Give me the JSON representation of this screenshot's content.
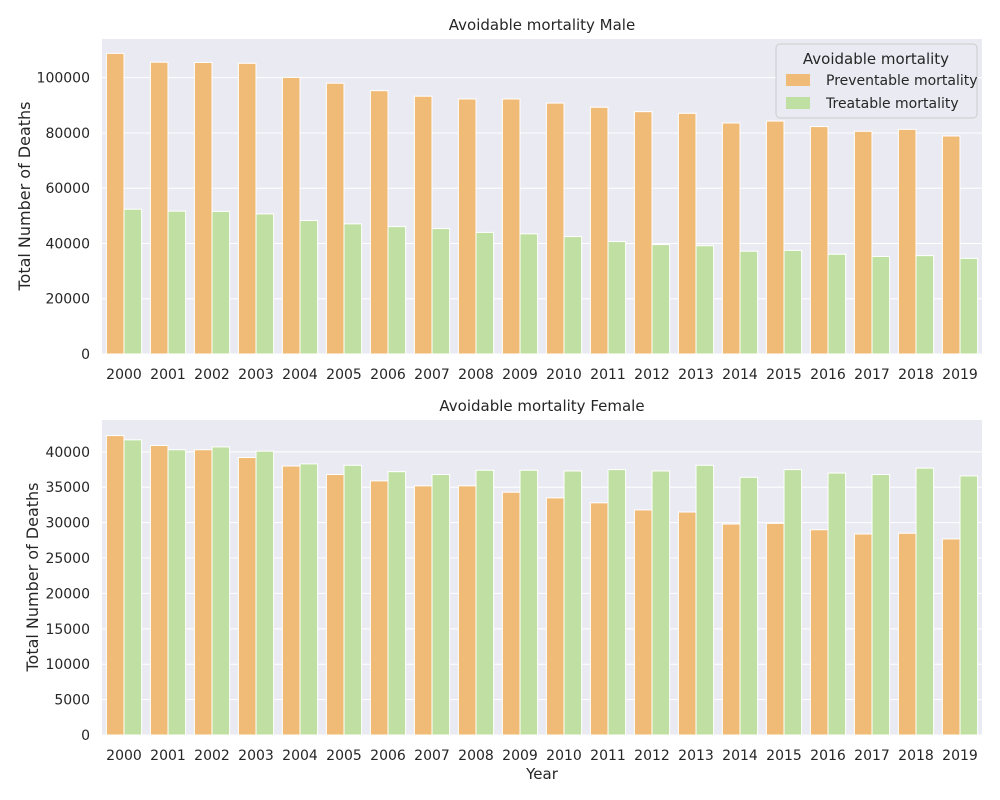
{
  "colors": {
    "plot_background": "#eaeaf2",
    "grid": "#ffffff",
    "preventable": "#f0bb77",
    "treatable": "#c0e0a3",
    "text": "#262626"
  },
  "legend": {
    "title": "Avoidable mortality",
    "position": "top-right",
    "entries": [
      "Preventable mortality",
      "Treatable mortality"
    ]
  },
  "chart_data": [
    {
      "type": "bar",
      "title": "Avoidable mortality Male",
      "xlabel": "",
      "ylabel": "Total Number of Deaths",
      "categories": [
        "2000",
        "2001",
        "2002",
        "2003",
        "2004",
        "2005",
        "2006",
        "2007",
        "2008",
        "2009",
        "2010",
        "2011",
        "2012",
        "2013",
        "2014",
        "2015",
        "2016",
        "2017",
        "2018",
        "2019"
      ],
      "ylim": [
        0,
        114000
      ],
      "yticks": [
        0,
        20000,
        40000,
        60000,
        80000,
        100000
      ],
      "grid": true,
      "legend": true,
      "series": [
        {
          "name": "Preventable mortality",
          "values": [
            108800,
            105600,
            105500,
            105200,
            100100,
            98000,
            95300,
            93300,
            92300,
            92300,
            90800,
            89300,
            87700,
            87100,
            83600,
            84300,
            82300,
            80600,
            81300,
            78900
          ]
        },
        {
          "name": "Treatable mortality",
          "values": [
            52400,
            51700,
            51600,
            50700,
            48300,
            47100,
            46100,
            45400,
            44000,
            43500,
            42500,
            40700,
            39600,
            39200,
            37200,
            37500,
            36100,
            35300,
            35600,
            34600
          ]
        }
      ]
    },
    {
      "type": "bar",
      "title": "Avoidable mortality Female",
      "xlabel": "Year",
      "ylabel": "Total Number of Deaths",
      "categories": [
        "2000",
        "2001",
        "2002",
        "2003",
        "2004",
        "2005",
        "2006",
        "2007",
        "2008",
        "2009",
        "2010",
        "2011",
        "2012",
        "2013",
        "2014",
        "2015",
        "2016",
        "2017",
        "2018",
        "2019"
      ],
      "ylim": [
        0,
        44500
      ],
      "yticks": [
        0,
        5000,
        10000,
        15000,
        20000,
        25000,
        30000,
        35000,
        40000
      ],
      "grid": true,
      "legend": false,
      "series": [
        {
          "name": "Preventable mortality",
          "values": [
            42300,
            40900,
            40300,
            39200,
            38000,
            36800,
            35900,
            35200,
            35200,
            34300,
            33500,
            32800,
            31800,
            31500,
            29800,
            29900,
            29000,
            28400,
            28500,
            27700
          ]
        },
        {
          "name": "Treatable mortality",
          "values": [
            41700,
            40300,
            40700,
            40100,
            38300,
            38100,
            37200,
            36800,
            37400,
            37400,
            37300,
            37500,
            37300,
            38100,
            36400,
            37500,
            37000,
            36800,
            37700,
            36600
          ]
        }
      ]
    }
  ]
}
